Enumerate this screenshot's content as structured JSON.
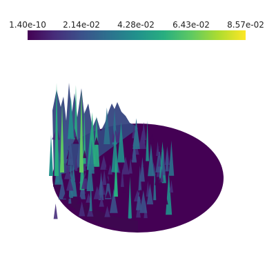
{
  "colorbar": {
    "tick_labels": [
      "1.40e-10",
      "2.14e-02",
      "4.28e-02",
      "6.43e-02",
      "8.57e-02"
    ],
    "colormap": "viridis",
    "color_stops": [
      "#440154",
      "#472d7b",
      "#3b528b",
      "#2c728e",
      "#21918c",
      "#28ae80",
      "#5ec962",
      "#addc30",
      "#fde725"
    ]
  },
  "scene": {
    "surface_base_color": "#440154",
    "background_color": "#ffffff"
  }
}
